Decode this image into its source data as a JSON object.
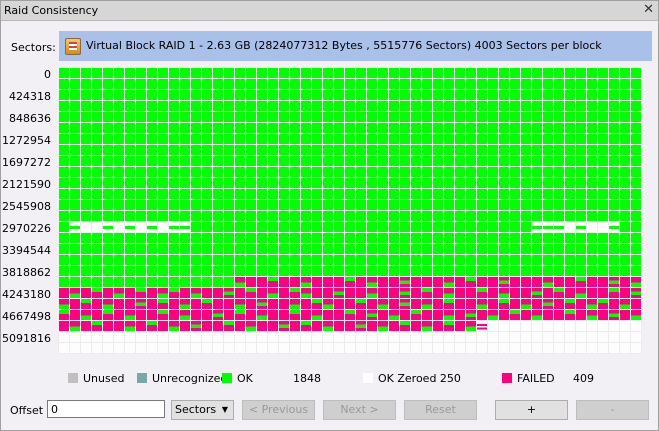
{
  "window": {
    "title": "Raid Consistency",
    "close": "✕"
  },
  "sectors": {
    "label": "Sectors:",
    "description": "Virtual Block RAID 1 - 2.63 GB (2824077312 Bytes , 5515776 Sectors) 4003 Sectors per block"
  },
  "row_labels": [
    "0",
    "424318",
    "848636",
    "1272954",
    "1697272",
    "2121590",
    "2545908",
    "2970226",
    "3394544",
    "3818862",
    "4243180",
    "4667498",
    "5091816"
  ],
  "colors": {
    "ok": "#00ff00",
    "failed": "#ff0080",
    "zeroed": "#fcfdfc",
    "unused": "#c0c0c0",
    "unrecognized": "#78a8a8"
  },
  "cell_map": {
    "rows": [
      "GGGGGGGGGGGGGGGGGGGGGGGGGGGGGGGGGGGGGGGGGGGGGGGGGGGGG",
      "GGGGGGGGGGGGGGGGGGGGGGGGGGGGGGGGGGGGGGGGGGGGGGGGGGGGG",
      "GGGGGGGGGGGGGGGGGGGGGGGGGGGGGGGGGGGGGGGGGGGGGGGGGGGGG",
      "GGGGGGGGGGGGGGGGGGGGGGGGGGGGGGGGGGGGGGGGGGGGGGGGGGGGG",
      "GGGGGGGGGGGGGGGGGGGGGGGGGGGGGGGGGGGGGGGGGGGGGGGGGGGGG",
      "GGGGGGGGGGGGGGGGGGGGGGGGGGGGGGGGGGGGGGGGGGGGGGGGGGGGG",
      "GGGGGGGGGGGGGGGGGGGGGGGGGGGGGGGGGGGGGGGGGGGGGGGGGGGGG",
      "GGGGGGGGGGGGGGGGGGGGGGGGGGGGGGGGGGGGGGGGGGGGGGGGGGGGG",
      "GGGGGGGGGGGGGGGGGGGGGGGGGGGGGGGGGGGGGGGGGGGGGGGGGGGGG",
      "GGGGGGGGGGGGGGGGGGGGGGGGGGGGGGGGGGGGGGGGGGGGGGGGGGGGG",
      "GGGGGGGGGGGGGGGGGGGGGGGGGGGGGGGGGGGGGGGGGGGGGGGGGGGGG",
      "GGGGGGGGGGGGGGGGGGGGGGGGGGGGGGGGGGGGGGGGGGGGGGGGGGGGG",
      "GGGGGGGGGGGGGGGGGGGGGGGGGGGGGGGGGGGGGGGGGGGGGGGGGGGGG",
      "GGGGGGGGGGGGGGGGGGGGGGGGGGGGGGGGGGGGGGGGGGGGGGGGGGGGG",
      "GwWWwWwWwWwwGGGGGGGGGGGGGGGGGGGGGGGGGGGGGGGwwwWwWWwGG",
      "GGGGGGGGGGGGGGGGGGGGGGGGGGGGGGGGGGGGGGGGGGGGGGGGGGGGG",
      "GGGGGGGGGGGGGGGGGGGGGGGGGGGGGGGGGGGGGGGGGGGGGGGGGGGGG",
      "GGGGGGGGGGGGGGGGGGGGGGGGGGGGGGGGGGGGGGGGGGGGGGGGGGGGG",
      "GGGGGGGGGGGGGGGGGGGGGGGGGGGGGGGGGGGGGGGGGGGGGGGGGGGGG",
      "GGGGGGGGGGGGGGGGaPPbPPaPPPbPaPPcPPPaPbPPcPPPaPPbPPcPa",
      "PaPbPaPbPabPaPPcPbPaPbaPPcPPaPPcPbPaPPbPaPPcPbPaPPbPc",
      "aPbPaPPcPbPaPbPPaPcPPaPbaPPbPaPcPaPbPPaPbPaPcPbPabPaP",
      "bPaPbPaPPbPaPPcPbPaPPbPaPPbPcPaPbPPaPcPaPbPaPPbPaPcPa",
      "PaPbPPaPbPaPcPPbPaPPcPbPaPPcPaPbPaPbPaxWWWWWWWWWWWWWW",
      "WWWWWWWWWWWWWWWWWWWWWWWWWWWWWWWWWWWWWWWWWWWWWWWWWWWWW",
      "WWWWWWWWWWWWWWWWWWWWWWWWWWWWWWWWWWWWWWWWWWWWWWWWWWWWW"
    ]
  },
  "legend": {
    "unused": "Unused",
    "unrecognized": "Unrecognized",
    "ok": "OK",
    "ok_count": "1848",
    "zeroed": "OK Zeroed 250",
    "failed": "FAILED",
    "failed_count": "409"
  },
  "controls": {
    "offset_label": "Offset",
    "offset_value": "0",
    "unit_select": "Sectors",
    "previous": "< Previous",
    "next": "Next >",
    "reset": "Reset",
    "plus": "+",
    "minus": "-"
  }
}
